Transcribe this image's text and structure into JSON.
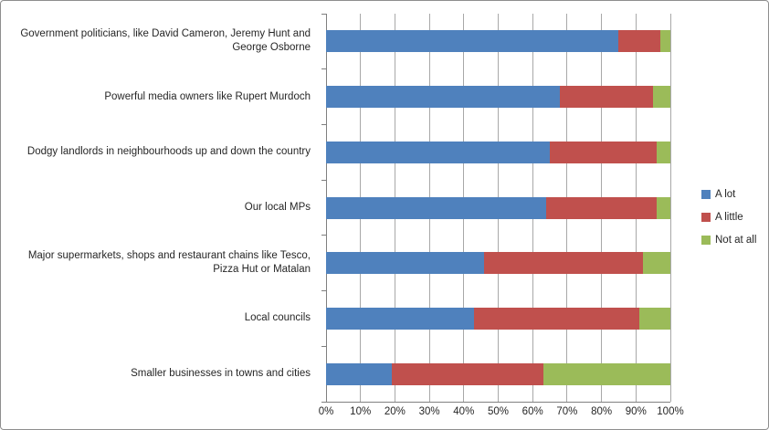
{
  "chart_data": {
    "type": "bar",
    "stacked": true,
    "orientation": "horizontal",
    "title": "",
    "categories": [
      "Government politicians, like David Cameron, Jeremy Hunt and George Osborne",
      "Powerful media owners like Rupert Murdoch",
      "Dodgy landlords in neighbourhoods up and down the country",
      "Our local MPs",
      "Major supermarkets, shops and restaurant chains like Tesco, Pizza Hut or Matalan",
      "Local councils",
      "Smaller businesses in towns and cities"
    ],
    "series": [
      {
        "name": "A lot",
        "color": "#4F81BD",
        "values": [
          85,
          68,
          65,
          64,
          46,
          43,
          19
        ]
      },
      {
        "name": "A little",
        "color": "#C0504D",
        "values": [
          12,
          27,
          31,
          32,
          46,
          48,
          44
        ]
      },
      {
        "name": "Not at all",
        "color": "#9BBB59",
        "values": [
          3,
          5,
          4,
          4,
          8,
          9,
          37
        ]
      }
    ],
    "x_axis": {
      "min": 0,
      "max": 100,
      "unit": "%",
      "ticks": [
        "0%",
        "10%",
        "20%",
        "30%",
        "40%",
        "50%",
        "60%",
        "70%",
        "80%",
        "90%",
        "100%"
      ]
    },
    "legend_position": "right",
    "gridlines": true
  },
  "colors": {
    "background": "#FFFFFF",
    "border": "#8E8E8E",
    "gridline": "#A8A8A8",
    "axis": "#7F7F7F",
    "text": "#262626"
  }
}
